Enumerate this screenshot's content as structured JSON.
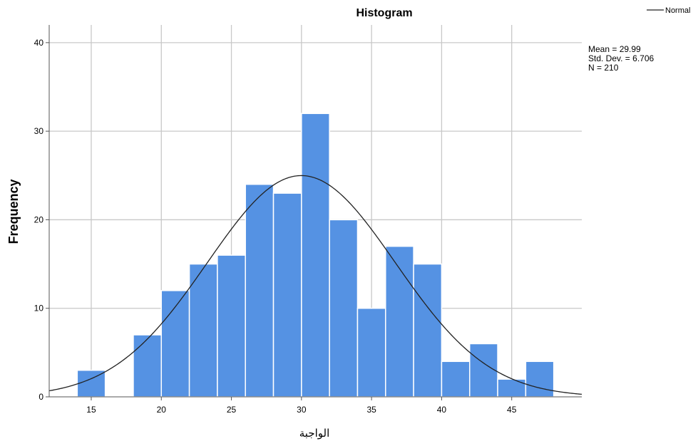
{
  "chart_data": {
    "type": "bar",
    "title": "Histogram",
    "xlabel": "الواجبة",
    "ylabel": "Frequency",
    "bin_width": 2,
    "bins": [
      {
        "start": 14,
        "end": 16,
        "count": 3
      },
      {
        "start": 16,
        "end": 18,
        "count": 0
      },
      {
        "start": 18,
        "end": 20,
        "count": 7
      },
      {
        "start": 20,
        "end": 22,
        "count": 12
      },
      {
        "start": 22,
        "end": 24,
        "count": 15
      },
      {
        "start": 24,
        "end": 26,
        "count": 16
      },
      {
        "start": 26,
        "end": 28,
        "count": 24
      },
      {
        "start": 28,
        "end": 30,
        "count": 23
      },
      {
        "start": 30,
        "end": 32,
        "count": 32
      },
      {
        "start": 32,
        "end": 34,
        "count": 20
      },
      {
        "start": 34,
        "end": 36,
        "count": 10
      },
      {
        "start": 36,
        "end": 38,
        "count": 17
      },
      {
        "start": 38,
        "end": 40,
        "count": 15
      },
      {
        "start": 40,
        "end": 42,
        "count": 4
      },
      {
        "start": 42,
        "end": 44,
        "count": 6
      },
      {
        "start": 44,
        "end": 46,
        "count": 2
      },
      {
        "start": 46,
        "end": 48,
        "count": 4
      }
    ],
    "xlim": [
      12,
      50
    ],
    "ylim": [
      0,
      42
    ],
    "xticks": [
      15,
      20,
      25,
      30,
      35,
      40,
      45
    ],
    "yticks": [
      0,
      10,
      20,
      30,
      40
    ],
    "grid": true,
    "bar_color": "#5592e3",
    "curve_color": "#222222",
    "normal_curve": {
      "mean": 29.99,
      "sd": 6.706,
      "n": 210
    },
    "stats": [
      "Mean = 29.99",
      "Std. Dev. = 6.706",
      "N = 210"
    ],
    "legend": {
      "label": "Normal",
      "position": "top-right"
    }
  }
}
